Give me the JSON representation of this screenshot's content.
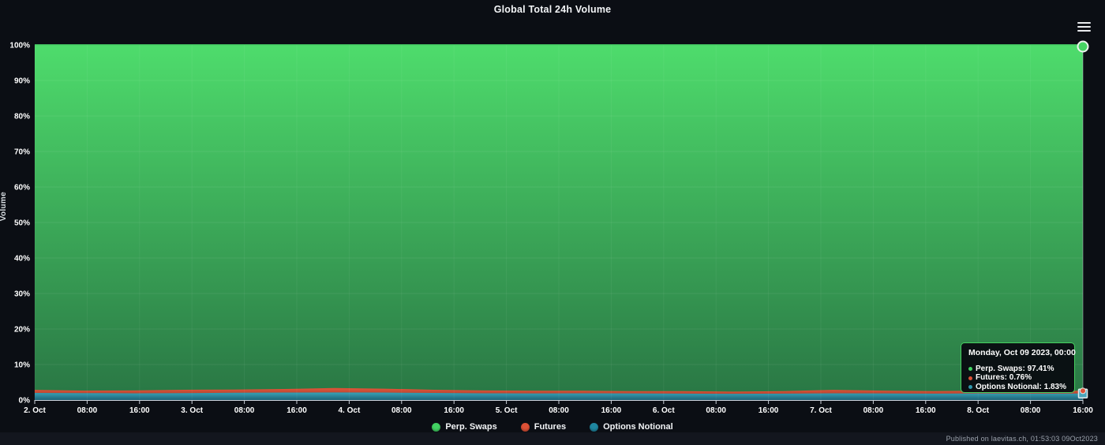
{
  "title": "Global Total 24h Volume",
  "footer": {
    "published": "Published on laevitas.ch, 01:53:03 09Oct2023"
  },
  "tooltip": {
    "header": "Monday, Oct 09 2023, 00:00",
    "rows": [
      {
        "label": "Perp. Swaps",
        "value": "97.41%",
        "text": "Perp. Swaps: 97.41%",
        "color": "#42d162"
      },
      {
        "label": "Futures",
        "value": "0.76%",
        "text": "Futures: 0.76%",
        "color": "#dd5136"
      },
      {
        "label": "Options Notional",
        "value": "1.83%",
        "text": "Options Notional: 1.83%",
        "color": "#2f97ac"
      }
    ]
  },
  "legend": [
    {
      "label": "Perp. Swaps",
      "color": "#42d162"
    },
    {
      "label": "Futures",
      "color": "#dd5136"
    },
    {
      "label": "Options Notional",
      "color": "#1f87a0"
    }
  ],
  "chart_data": {
    "type": "area",
    "stacked": true,
    "title": "Global Total 24h Volume",
    "ylabel": "Volume",
    "ylim": [
      0,
      100
    ],
    "y_ticks": [
      "0%",
      "10%",
      "20%",
      "30%",
      "40%",
      "50%",
      "60%",
      "70%",
      "80%",
      "90%",
      "100%"
    ],
    "x_ticks": [
      "2. Oct",
      "08:00",
      "16:00",
      "3. Oct",
      "08:00",
      "16:00",
      "4. Oct",
      "08:00",
      "16:00",
      "5. Oct",
      "08:00",
      "16:00",
      "6. Oct",
      "08:00",
      "16:00",
      "7. Oct",
      "08:00",
      "16:00",
      "8. Oct",
      "08:00",
      "16:00"
    ],
    "x_range": [
      "Oct 2 2023 00:00",
      "Oct 9 2023 00:00"
    ],
    "interval_hours": 8,
    "grid": true,
    "legend_position": "bottom",
    "series": [
      {
        "name": "Options Notional",
        "color": "#2f97ac",
        "values": [
          2.0,
          1.95,
          1.9,
          1.95,
          2.05,
          2.1,
          2.15,
          2.1,
          2.0,
          1.9,
          1.85,
          1.9,
          1.85,
          1.8,
          1.75,
          1.8,
          1.9,
          1.85,
          1.8,
          1.85,
          1.8,
          1.83
        ]
      },
      {
        "name": "Futures",
        "color": "#dd5136",
        "values": [
          0.85,
          0.7,
          0.8,
          0.95,
          0.9,
          1.0,
          1.25,
          1.1,
          0.9,
          0.8,
          0.75,
          0.7,
          0.65,
          0.7,
          0.6,
          0.7,
          0.95,
          0.8,
          0.7,
          0.8,
          0.85,
          0.76
        ]
      },
      {
        "name": "Perp. Swaps",
        "color": "#42d162",
        "values": [
          97.15,
          97.35,
          97.3,
          97.1,
          97.05,
          96.9,
          96.6,
          96.8,
          97.1,
          97.3,
          97.4,
          97.4,
          97.5,
          97.5,
          97.65,
          97.5,
          97.15,
          97.35,
          97.5,
          97.35,
          97.35,
          97.41
        ]
      }
    ],
    "hover": {
      "x_label": "Monday, Oct 09 2023, 00:00",
      "perp_swaps": 97.41,
      "futures": 0.76,
      "options_notional": 1.83
    }
  }
}
